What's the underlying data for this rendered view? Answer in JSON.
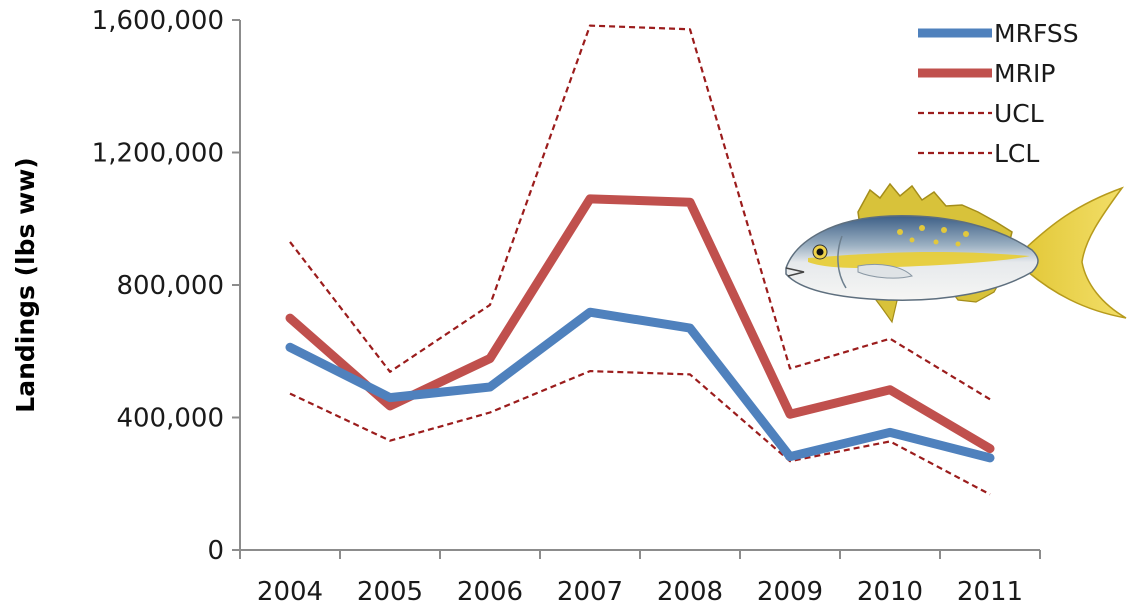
{
  "chart_data": {
    "type": "line",
    "title": "",
    "xlabel": "",
    "ylabel": "Landings (lbs ww)",
    "categories": [
      "2004",
      "2005",
      "2006",
      "2007",
      "2008",
      "2009",
      "2010",
      "2011"
    ],
    "ylim": [
      0,
      1600000
    ],
    "yticks": [
      0,
      400000,
      800000,
      1200000,
      1600000
    ],
    "ytick_labels": [
      "0",
      "400,000",
      "800,000",
      "1,200,000",
      "1,600,000"
    ],
    "grid": false,
    "legend_position": "top-right",
    "series": [
      {
        "name": "MRFSS",
        "color": "#4f81bd",
        "style": "solid",
        "width": "thick",
        "values": [
          612000,
          460000,
          492000,
          718000,
          670000,
          282000,
          355000,
          278000
        ]
      },
      {
        "name": "MRIP",
        "color": "#c0504d",
        "style": "solid",
        "width": "thick",
        "values": [
          700000,
          435000,
          578000,
          1060000,
          1050000,
          410000,
          484000,
          306000
        ]
      },
      {
        "name": "UCL",
        "color": "#9b1c1c",
        "style": "dashed",
        "width": "thin",
        "values": [
          930000,
          538000,
          740000,
          1583000,
          1572000,
          548000,
          638000,
          455000
        ]
      },
      {
        "name": "LCL",
        "color": "#9b1c1c",
        "style": "dashed",
        "width": "thin",
        "values": [
          472000,
          330000,
          415000,
          540000,
          530000,
          268000,
          328000,
          168000
        ]
      }
    ],
    "illustration": "yellowtail-snapper-fish"
  }
}
